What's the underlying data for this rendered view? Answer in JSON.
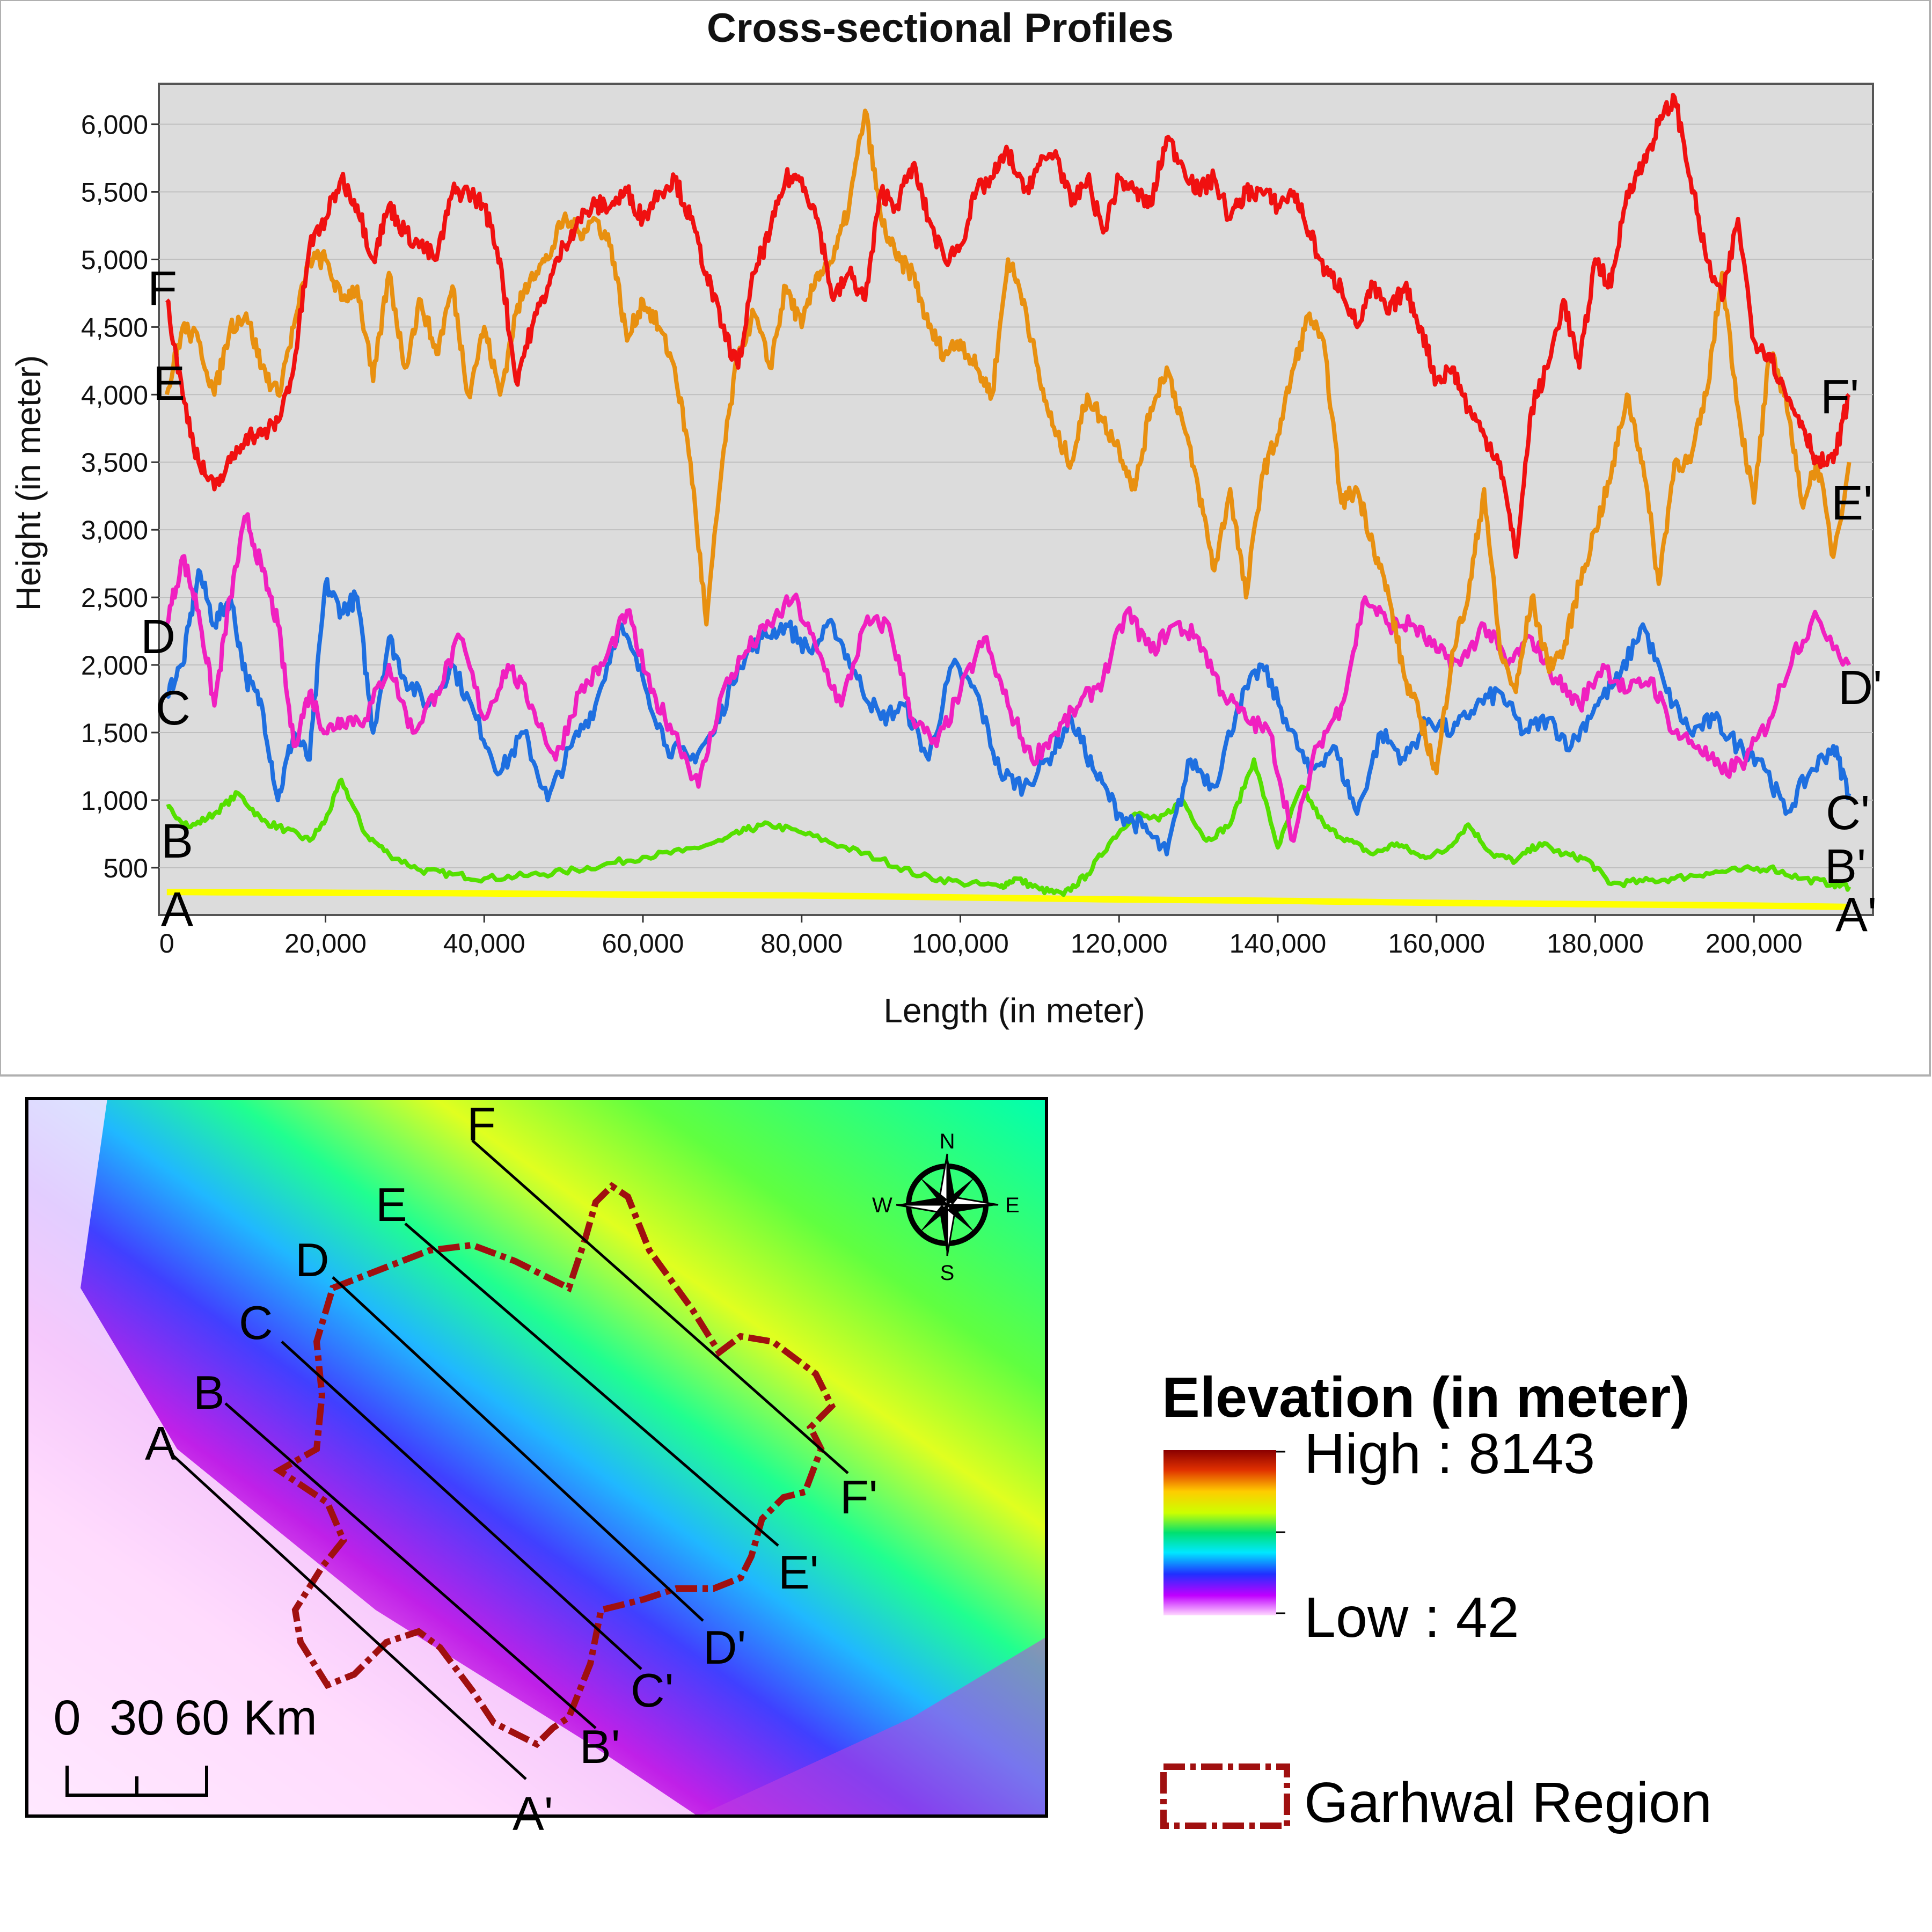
{
  "chart_data": {
    "type": "line",
    "title": "Cross-sectional Profiles",
    "xlabel": "Length (in meter)",
    "ylabel": "Height (in meter)",
    "xlim": [
      -1000,
      215000
    ],
    "ylim": [
      150,
      6300
    ],
    "grid": true,
    "x_ticks": [
      "0",
      "20,000",
      "40,000",
      "60,000",
      "80,000",
      "100,000",
      "120,000",
      "140,000",
      "160,000",
      "180,000",
      "200,000"
    ],
    "x_tick_values": [
      0,
      20000,
      40000,
      60000,
      80000,
      100000,
      120000,
      140000,
      160000,
      180000,
      200000
    ],
    "y_ticks": [
      "500",
      "1,000",
      "1,500",
      "2,000",
      "2,500",
      "3,000",
      "3,500",
      "4,000",
      "4,500",
      "5,000",
      "5,500",
      "6,000"
    ],
    "y_tick_values": [
      500,
      1000,
      1500,
      2000,
      2500,
      3000,
      3500,
      4000,
      4500,
      5000,
      5500,
      6000
    ],
    "series": [
      {
        "start_label": "A",
        "end_label": "A'",
        "color": "#ffff00",
        "x": [
          0,
          20000,
          40000,
          60000,
          80000,
          100000,
          120000,
          140000,
          160000,
          180000,
          200000,
          212000
        ],
        "y": [
          320,
          315,
          310,
          300,
          295,
          280,
          265,
          255,
          240,
          230,
          220,
          210
        ]
      },
      {
        "start_label": "B",
        "end_label": "B'",
        "color": "#55e000",
        "x": [
          0,
          3000,
          6000,
          9000,
          12000,
          15000,
          18000,
          20000,
          22000,
          25000,
          28000,
          32000,
          36000,
          40000,
          45000,
          50000,
          55000,
          60000,
          65000,
          70000,
          73000,
          76000,
          80000,
          85000,
          90000,
          95000,
          100000,
          105000,
          107000,
          110000,
          113000,
          116000,
          119000,
          122000,
          125000,
          128000,
          131000,
          134000,
          137000,
          140000,
          143000,
          146000,
          149000,
          152000,
          155000,
          158000,
          161000,
          164000,
          167000,
          170000,
          173000,
          176000,
          179000,
          182000,
          186000,
          190000,
          194000,
          198000,
          202000,
          206000,
          210000,
          212000
        ],
        "y": [
          950,
          800,
          900,
          1050,
          850,
          780,
          700,
          850,
          1150,
          750,
          600,
          480,
          450,
          420,
          440,
          470,
          520,
          580,
          620,
          700,
          780,
          820,
          760,
          660,
          560,
          440,
          390,
          360,
          420,
          340,
          300,
          450,
          700,
          900,
          850,
          1000,
          700,
          820,
          1300,
          650,
          1100,
          800,
          700,
          600,
          680,
          580,
          620,
          820,
          600,
          550,
          680,
          600,
          560,
          380,
          400,
          420,
          460,
          480,
          500,
          420,
          380,
          360
        ]
      },
      {
        "start_label": "C",
        "end_label": "C'",
        "color": "#1e6fe0",
        "x": [
          0,
          2000,
          4000,
          6000,
          8000,
          10000,
          12000,
          14000,
          16000,
          18000,
          20000,
          22000,
          24000,
          26000,
          28000,
          30000,
          33000,
          36000,
          39000,
          42000,
          45000,
          48000,
          51000,
          54000,
          57000,
          60000,
          63000,
          66000,
          69000,
          72000,
          75000,
          78000,
          81000,
          84000,
          87000,
          90000,
          93000,
          96000,
          99000,
          102000,
          105000,
          108000,
          111000,
          114000,
          117000,
          120000,
          123000,
          126000,
          129000,
          132000,
          135000,
          138000,
          141000,
          144000,
          147000,
          150000,
          153000,
          156000,
          159000,
          162000,
          165000,
          168000,
          171000,
          174000,
          177000,
          180000,
          183000,
          186000,
          189000,
          192000,
          195000,
          198000,
          201000,
          204000,
          207000,
          210000,
          212000
        ],
        "y": [
          1800,
          2000,
          2700,
          2300,
          2500,
          1900,
          1700,
          1000,
          1500,
          1300,
          2600,
          2400,
          2500,
          1500,
          2200,
          1900,
          1700,
          2000,
          1600,
          1200,
          1500,
          1000,
          1400,
          1700,
          2300,
          1900,
          1400,
          1300,
          1500,
          2000,
          2200,
          2300,
          2100,
          2300,
          1900,
          1600,
          1700,
          1300,
          2000,
          1800,
          1200,
          1100,
          1300,
          1600,
          1200,
          900,
          800,
          600,
          1300,
          1100,
          1700,
          2000,
          1600,
          1200,
          1400,
          900,
          1500,
          1300,
          1600,
          1500,
          1700,
          1800,
          1500,
          1600,
          1400,
          1700,
          1900,
          2300,
          1800,
          1500,
          1600,
          1400,
          1300,
          900,
          1200,
          1400,
          1050
        ]
      },
      {
        "start_label": "D",
        "end_label": "D'",
        "color": "#f020c0",
        "x": [
          0,
          2000,
          4000,
          6000,
          8000,
          10000,
          12000,
          14000,
          16000,
          18000,
          20000,
          22000,
          25000,
          28000,
          31000,
          34000,
          37000,
          40000,
          43000,
          46000,
          49000,
          52000,
          55000,
          58000,
          61000,
          64000,
          67000,
          70000,
          73000,
          76000,
          79000,
          82000,
          85000,
          88000,
          91000,
          94000,
          97000,
          100000,
          103000,
          106000,
          109000,
          112000,
          115000,
          118000,
          121000,
          124000,
          127000,
          130000,
          133000,
          136000,
          139000,
          142000,
          145000,
          148000,
          151000,
          154000,
          157000,
          160000,
          163000,
          166000,
          169000,
          172000,
          175000,
          178000,
          181000,
          184000,
          187000,
          190000,
          193000,
          196000,
          199000,
          202000,
          205000,
          208000,
          212000
        ],
        "y": [
          2300,
          2800,
          2400,
          1700,
          2500,
          3100,
          2700,
          2300,
          1400,
          1800,
          1500,
          1600,
          1600,
          2000,
          1500,
          1800,
          2200,
          1600,
          2000,
          1700,
          1300,
          1800,
          2000,
          2400,
          1800,
          1500,
          1100,
          1800,
          2100,
          2300,
          2500,
          2100,
          1700,
          2300,
          2300,
          1600,
          1400,
          1800,
          2200,
          1700,
          1300,
          1500,
          1700,
          1900,
          2400,
          2100,
          2300,
          2200,
          1800,
          1600,
          1500,
          700,
          1400,
          1700,
          2500,
          2300,
          2300,
          2100,
          2000,
          2300,
          2000,
          2200,
          1900,
          1700,
          2000,
          1800,
          1900,
          1500,
          1400,
          1200,
          1300,
          1600,
          2100,
          2350,
          2000
        ]
      },
      {
        "start_label": "E",
        "end_label": "E'",
        "color": "#e89010",
        "x": [
          0,
          2000,
          4000,
          6000,
          8000,
          10000,
          12000,
          14000,
          16000,
          18000,
          20000,
          22000,
          24000,
          26000,
          28000,
          30000,
          32000,
          34000,
          36000,
          38000,
          40000,
          42000,
          44000,
          46000,
          48000,
          50000,
          52000,
          54000,
          56000,
          58000,
          60000,
          62000,
          64000,
          66000,
          68000,
          70000,
          72000,
          74000,
          76000,
          78000,
          80000,
          82000,
          84000,
          86000,
          88000,
          90000,
          92000,
          94000,
          96000,
          98000,
          100000,
          102000,
          104000,
          106000,
          108000,
          110000,
          112000,
          114000,
          116000,
          118000,
          120000,
          122000,
          124000,
          126000,
          128000,
          130000,
          132000,
          134000,
          136000,
          138000,
          140000,
          142000,
          144000,
          146000,
          148000,
          150000,
          152000,
          154000,
          156000,
          158000,
          160000,
          162000,
          164000,
          166000,
          168000,
          170000,
          172000,
          174000,
          176000,
          178000,
          180000,
          182000,
          184000,
          186000,
          188000,
          190000,
          192000,
          194000,
          196000,
          198000,
          200000,
          202000,
          204000,
          206000,
          208000,
          210000,
          212000
        ],
        "y": [
          4000,
          4500,
          4400,
          4000,
          4500,
          4600,
          4200,
          4000,
          4500,
          5000,
          5000,
          4700,
          4800,
          4100,
          4900,
          4200,
          4700,
          4300,
          4800,
          4000,
          4500,
          4000,
          4600,
          4900,
          5000,
          5300,
          5200,
          5300,
          5100,
          4400,
          4700,
          4500,
          4200,
          3500,
          2300,
          3500,
          4300,
          4600,
          4200,
          4800,
          4500,
          4900,
          5000,
          5400,
          6100,
          5300,
          5000,
          4900,
          4500,
          4300,
          4400,
          4200,
          4000,
          5000,
          4700,
          4100,
          3700,
          3500,
          4000,
          3800,
          3600,
          3300,
          3900,
          4200,
          3800,
          3300,
          2700,
          3300,
          2500,
          3400,
          3700,
          4200,
          4600,
          4300,
          3200,
          3300,
          2900,
          2500,
          1900,
          1600,
          1200,
          2100,
          2500,
          3300,
          2100,
          1800,
          2500,
          2000,
          2100,
          2600,
          3000,
          3400,
          4000,
          3500,
          2600,
          3500,
          3500,
          4000,
          4900,
          3900,
          3200,
          4300,
          4000,
          3200,
          3500,
          2800,
          3500
        ]
      },
      {
        "start_label": "F",
        "end_label": "F'",
        "color": "#f01010",
        "x": [
          0,
          2000,
          4000,
          6000,
          8000,
          10000,
          12000,
          14000,
          16000,
          18000,
          20000,
          22000,
          24000,
          26000,
          28000,
          30000,
          32000,
          34000,
          36000,
          38000,
          40000,
          42000,
          44000,
          46000,
          48000,
          50000,
          52000,
          54000,
          56000,
          58000,
          60000,
          62000,
          64000,
          66000,
          68000,
          70000,
          72000,
          74000,
          76000,
          78000,
          80000,
          82000,
          84000,
          86000,
          88000,
          90000,
          92000,
          94000,
          96000,
          98000,
          100000,
          102000,
          104000,
          106000,
          108000,
          110000,
          112000,
          114000,
          116000,
          118000,
          120000,
          122000,
          124000,
          126000,
          128000,
          130000,
          132000,
          134000,
          136000,
          138000,
          140000,
          142000,
          144000,
          146000,
          148000,
          150000,
          152000,
          154000,
          156000,
          158000,
          160000,
          162000,
          164000,
          166000,
          168000,
          170000,
          172000,
          174000,
          176000,
          178000,
          180000,
          182000,
          184000,
          186000,
          188000,
          190000,
          192000,
          194000,
          196000,
          198000,
          200000,
          202000,
          204000,
          206000,
          208000,
          210000,
          212000
        ],
        "y": [
          4700,
          4000,
          3500,
          3300,
          3500,
          3700,
          3700,
          3800,
          4200,
          5100,
          5300,
          5600,
          5400,
          5000,
          5400,
          5200,
          5100,
          5000,
          5500,
          5500,
          5400,
          5000,
          4100,
          4500,
          4800,
          5100,
          5300,
          5400,
          5400,
          5500,
          5300,
          5500,
          5600,
          5300,
          4900,
          4500,
          4200,
          4900,
          5200,
          5600,
          5600,
          5300,
          4700,
          4900,
          4700,
          5500,
          5400,
          5700,
          5300,
          5000,
          5100,
          5500,
          5600,
          5800,
          5500,
          5700,
          5800,
          5400,
          5600,
          5200,
          5600,
          5500,
          5400,
          5900,
          5700,
          5500,
          5600,
          5300,
          5500,
          5500,
          5400,
          5500,
          5200,
          4900,
          4800,
          4500,
          4800,
          4600,
          4800,
          4500,
          4100,
          4200,
          3900,
          3700,
          3500,
          2800,
          3900,
          4200,
          4700,
          4200,
          5000,
          4800,
          5500,
          5700,
          6000,
          6200,
          5600,
          5000,
          4700,
          5300,
          4400,
          4300,
          4000,
          3800,
          3500,
          3500,
          4000
        ]
      }
    ]
  },
  "map": {
    "profile_lines": [
      {
        "start": "A",
        "end": "A'"
      },
      {
        "start": "B",
        "end": "B'"
      },
      {
        "start": "C",
        "end": "C'"
      },
      {
        "start": "D",
        "end": "D'"
      },
      {
        "start": "E",
        "end": "E'"
      },
      {
        "start": "F",
        "end": "F'"
      }
    ],
    "compass": {
      "n": "N",
      "s": "S",
      "e": "E",
      "w": "W"
    },
    "scale_bar": {
      "label_0": "0",
      "label_30": "30",
      "label_60": "60 Km"
    },
    "legend": {
      "title": "Elevation (in meter)",
      "high": "High : 8143",
      "low": "Low : 42",
      "boundary": "Garhwal Region"
    },
    "colors": {
      "boundary": "#a01010",
      "panel_bg": "#d9d9d9"
    }
  }
}
